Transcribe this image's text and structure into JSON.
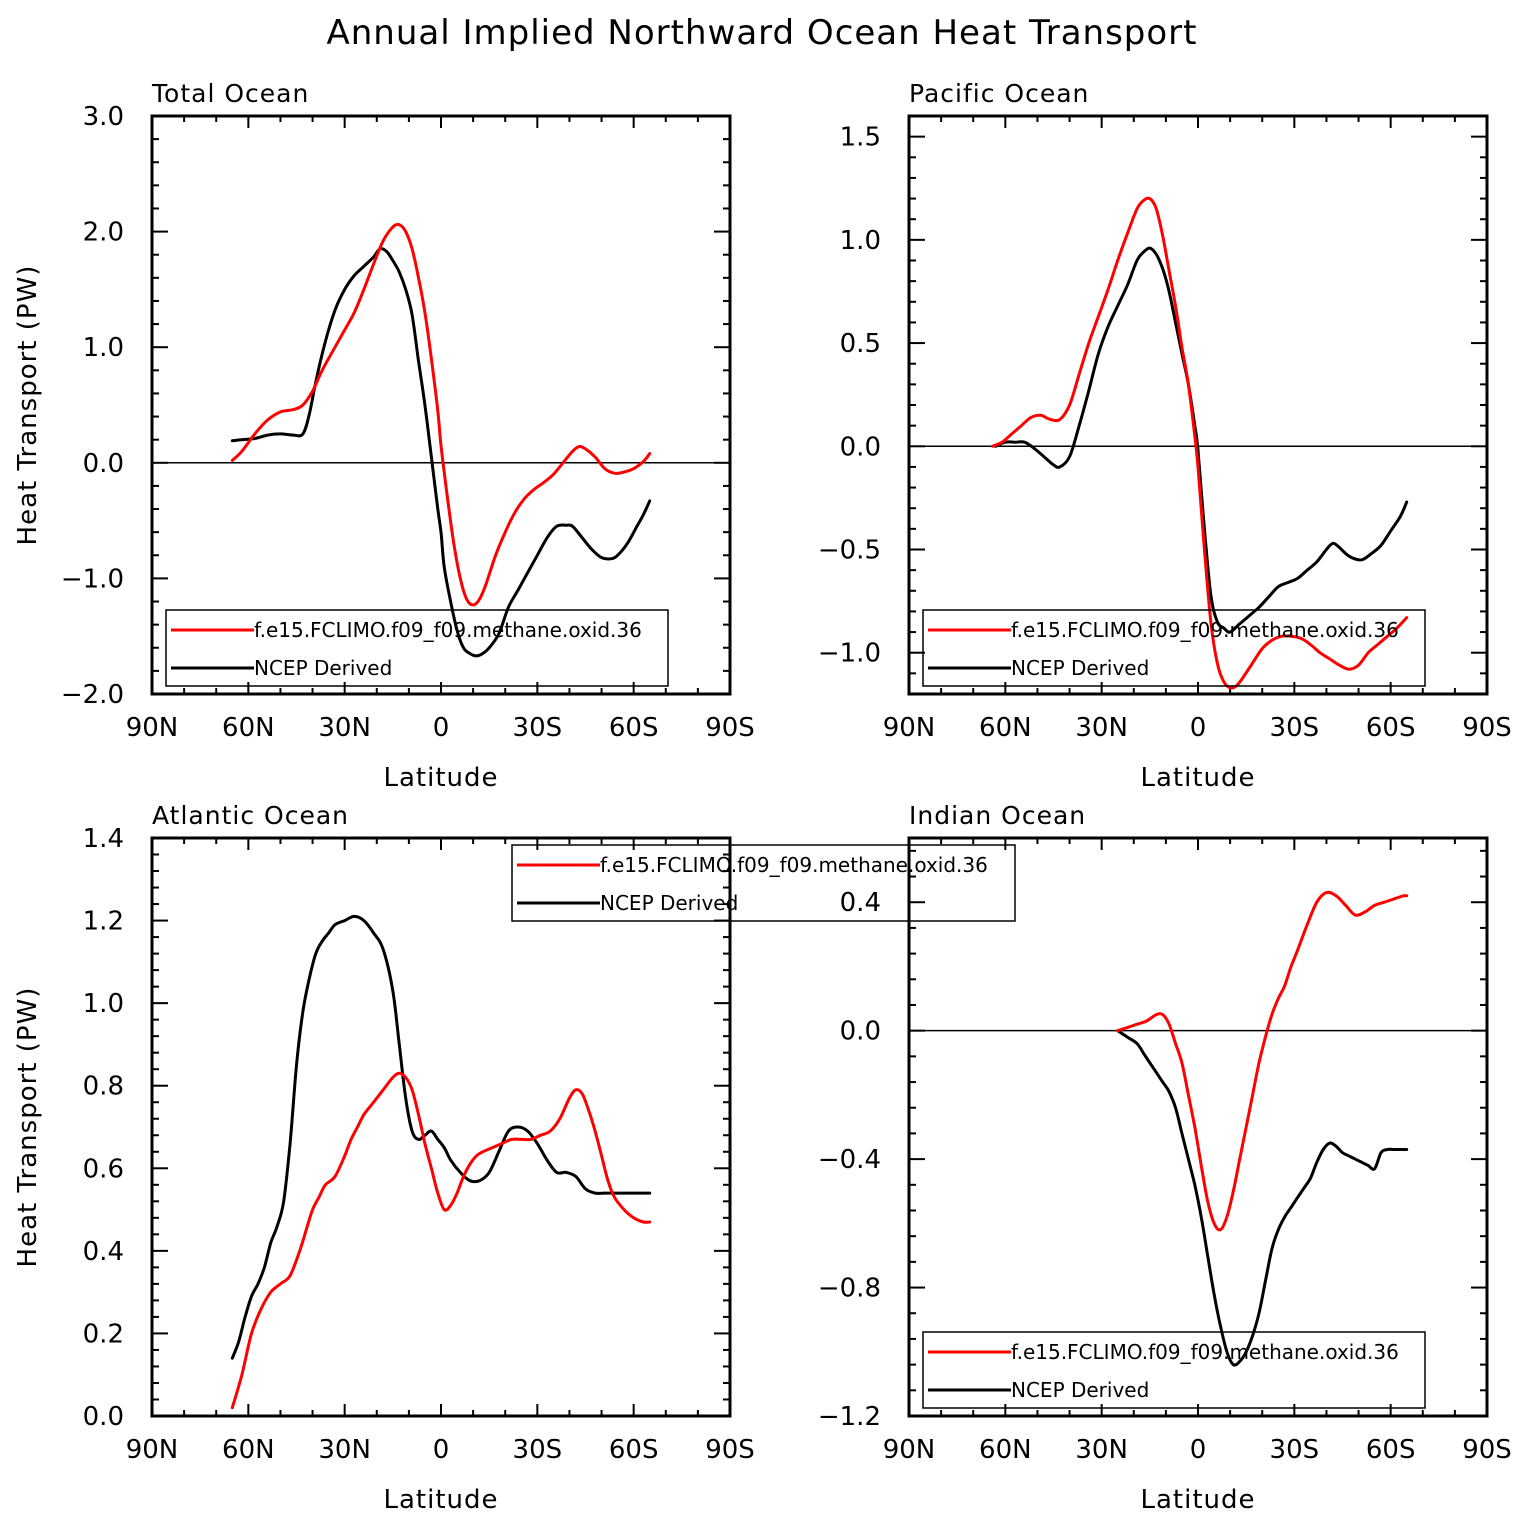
{
  "figure": {
    "title": "Annual Implied Northward Ocean Heat Transport"
  },
  "colors": {
    "model": "#ff0000",
    "ncep": "#000000"
  },
  "chart_data": [
    {
      "type": "line",
      "title": "Total Ocean",
      "xlabel": "Latitude",
      "ylabel": "Heat Transport (PW)",
      "xlim": [
        90,
        -90
      ],
      "ylim": [
        -2.0,
        3.0
      ],
      "yticks": [
        -2.0,
        -1.0,
        0.0,
        1.0,
        2.0,
        3.0
      ],
      "ytick_labels": [
        "−2.0",
        "−1.0",
        "0.0",
        "1.0",
        "2.0",
        "3.0"
      ],
      "xticks": [
        90,
        60,
        30,
        0,
        -30,
        -60,
        -90
      ],
      "xtick_labels": [
        "90N",
        "60N",
        "30N",
        "0",
        "30S",
        "60S",
        "90S"
      ],
      "legend": [
        "f.e15.FCLIMO.f09_f09.methane.oxid.36",
        "NCEP Derived"
      ],
      "legend_position": "bottom-left",
      "series": [
        {
          "name": "f.e15.FCLIMO.f09_f09.methane.oxid.36",
          "color": "model",
          "x": [
            65,
            62,
            58,
            54,
            50,
            46,
            43,
            40,
            37,
            33,
            30,
            27,
            24,
            21,
            18,
            15,
            13,
            11,
            9,
            7,
            5,
            3,
            1,
            0,
            -2,
            -4,
            -6,
            -8,
            -10,
            -12,
            -14,
            -17,
            -20,
            -23,
            -26,
            -29,
            -32,
            -35,
            -38,
            -41,
            -43,
            -45,
            -48,
            -51,
            -54,
            -57,
            -60,
            -63,
            -65
          ],
          "y": [
            0.02,
            0.1,
            0.25,
            0.37,
            0.44,
            0.46,
            0.5,
            0.62,
            0.8,
            1.0,
            1.15,
            1.3,
            1.5,
            1.72,
            1.92,
            2.04,
            2.06,
            2.0,
            1.85,
            1.6,
            1.3,
            0.9,
            0.45,
            0.15,
            -0.3,
            -0.7,
            -1.0,
            -1.18,
            -1.23,
            -1.18,
            -1.05,
            -0.8,
            -0.6,
            -0.43,
            -0.31,
            -0.23,
            -0.17,
            -0.1,
            0.0,
            0.1,
            0.14,
            0.12,
            0.05,
            -0.05,
            -0.09,
            -0.08,
            -0.05,
            0.01,
            0.08
          ]
        },
        {
          "name": "NCEP Derived",
          "color": "ncep",
          "x": [
            65,
            62,
            58,
            54,
            50,
            46,
            43,
            41,
            39,
            36,
            33,
            30,
            27,
            24,
            21,
            19,
            17,
            15,
            13,
            11,
            9,
            7,
            5,
            3,
            1,
            0,
            -1,
            -3,
            -5,
            -7,
            -9,
            -11,
            -13,
            -15,
            -18,
            -21,
            -24,
            -27,
            -30,
            -33,
            -36,
            -39,
            -41,
            -44,
            -47,
            -50,
            -53,
            -55,
            -58,
            -61,
            -63,
            -65
          ],
          "y": [
            0.19,
            0.2,
            0.21,
            0.24,
            0.25,
            0.24,
            0.25,
            0.42,
            0.7,
            1.05,
            1.32,
            1.5,
            1.62,
            1.7,
            1.78,
            1.85,
            1.83,
            1.75,
            1.65,
            1.5,
            1.28,
            0.88,
            0.5,
            0.05,
            -0.4,
            -0.6,
            -0.9,
            -1.2,
            -1.45,
            -1.6,
            -1.65,
            -1.67,
            -1.65,
            -1.6,
            -1.48,
            -1.25,
            -1.1,
            -0.95,
            -0.8,
            -0.65,
            -0.55,
            -0.54,
            -0.55,
            -0.65,
            -0.75,
            -0.82,
            -0.83,
            -0.8,
            -0.7,
            -0.55,
            -0.45,
            -0.33
          ]
        }
      ]
    },
    {
      "type": "line",
      "title": "Pacific Ocean",
      "xlabel": "Latitude",
      "ylabel": "",
      "xlim": [
        90,
        -90
      ],
      "ylim": [
        -1.2,
        1.6
      ],
      "yticks": [
        -1.0,
        -0.5,
        0.0,
        0.5,
        1.0,
        1.5
      ],
      "ytick_labels": [
        "−1.0",
        "−0.5",
        "0.0",
        "0.5",
        "1.0",
        "1.5"
      ],
      "xticks": [
        90,
        60,
        30,
        0,
        -30,
        -60,
        -90
      ],
      "xtick_labels": [
        "90N",
        "60N",
        "30N",
        "0",
        "30S",
        "60S",
        "90S"
      ],
      "legend": [
        "f.e15.FCLIMO.f09_f09.methane.oxid.36",
        "NCEP Derived"
      ],
      "legend_position": "bottom-left",
      "series": [
        {
          "name": "f.e15.FCLIMO.f09_f09.methane.oxid.36",
          "color": "model",
          "x": [
            64,
            61,
            58,
            55,
            52,
            49,
            46,
            43,
            40,
            37,
            34,
            31,
            28,
            25,
            22,
            19,
            17,
            15,
            13,
            11,
            9,
            7,
            5,
            3,
            1,
            0,
            -2,
            -4,
            -6,
            -8,
            -10,
            -12,
            -14,
            -17,
            -20,
            -23,
            -26,
            -29,
            -32,
            -35,
            -38,
            -41,
            -44,
            -47,
            -50,
            -53,
            -56,
            -59,
            -62,
            -65
          ],
          "y": [
            0.0,
            0.02,
            0.06,
            0.1,
            0.14,
            0.15,
            0.13,
            0.13,
            0.2,
            0.35,
            0.5,
            0.63,
            0.76,
            0.9,
            1.03,
            1.15,
            1.19,
            1.2,
            1.15,
            1.02,
            0.85,
            0.68,
            0.48,
            0.3,
            0.05,
            -0.1,
            -0.5,
            -0.85,
            -1.05,
            -1.14,
            -1.17,
            -1.16,
            -1.12,
            -1.05,
            -0.98,
            -0.94,
            -0.92,
            -0.92,
            -0.93,
            -0.96,
            -1.0,
            -1.03,
            -1.06,
            -1.08,
            -1.06,
            -1.0,
            -0.96,
            -0.92,
            -0.88,
            -0.83
          ]
        },
        {
          "name": "NCEP Derived",
          "color": "ncep",
          "x": [
            63,
            60,
            57,
            54,
            51,
            48,
            45,
            43,
            40,
            37,
            34,
            31,
            28,
            25,
            22,
            19,
            17,
            15,
            13,
            11,
            9,
            7,
            5,
            3,
            1,
            0,
            -2,
            -4,
            -6,
            -8,
            -10,
            -13,
            -16,
            -19,
            -22,
            -25,
            -28,
            -31,
            -34,
            -37,
            -40,
            -42,
            -44,
            -46,
            -48,
            -51,
            -54,
            -57,
            -60,
            -63,
            -65
          ],
          "y": [
            0.0,
            0.02,
            0.02,
            0.02,
            -0.01,
            -0.05,
            -0.09,
            -0.1,
            -0.05,
            0.1,
            0.27,
            0.45,
            0.58,
            0.68,
            0.78,
            0.9,
            0.94,
            0.96,
            0.93,
            0.86,
            0.75,
            0.6,
            0.45,
            0.3,
            0.1,
            -0.02,
            -0.4,
            -0.72,
            -0.85,
            -0.88,
            -0.9,
            -0.86,
            -0.82,
            -0.78,
            -0.73,
            -0.68,
            -0.66,
            -0.64,
            -0.6,
            -0.56,
            -0.5,
            -0.47,
            -0.49,
            -0.52,
            -0.54,
            -0.55,
            -0.52,
            -0.48,
            -0.41,
            -0.34,
            -0.27
          ]
        }
      ]
    },
    {
      "type": "line",
      "title": "Atlantic Ocean",
      "xlabel": "Latitude",
      "ylabel": "Heat Transport (PW)",
      "xlim": [
        90,
        -90
      ],
      "ylim": [
        0.0,
        1.4
      ],
      "yticks": [
        0.0,
        0.2,
        0.4,
        0.6,
        0.8,
        1.0,
        1.2,
        1.4
      ],
      "ytick_labels": [
        "0.0",
        "0.2",
        "0.4",
        "0.6",
        "0.8",
        "1.0",
        "1.2",
        "1.4"
      ],
      "xticks": [
        90,
        60,
        30,
        0,
        -30,
        -60,
        -90
      ],
      "xtick_labels": [
        "90N",
        "60N",
        "30N",
        "0",
        "30S",
        "60S",
        "90S"
      ],
      "legend": [
        "f.e15.FCLIMO.f09_f09.methane.oxid.36",
        "NCEP Derived"
      ],
      "legend_position": "top-center",
      "series": [
        {
          "name": "f.e15.FCLIMO.f09_f09.methane.oxid.36",
          "color": "model",
          "x": [
            65,
            62,
            59,
            56,
            53,
            50,
            47,
            44,
            42,
            40,
            38,
            36,
            33,
            30,
            28,
            26,
            24,
            21,
            18,
            15,
            13,
            11,
            9,
            7,
            5,
            3,
            1,
            -1,
            -3,
            -5,
            -7,
            -9,
            -11,
            -13,
            -16,
            -19,
            -22,
            -25,
            -28,
            -31,
            -34,
            -37,
            -40,
            -42,
            -44,
            -46,
            -48,
            -50,
            -52,
            -54,
            -57,
            -60,
            -63,
            -65
          ],
          "y": [
            0.02,
            0.1,
            0.2,
            0.26,
            0.3,
            0.32,
            0.34,
            0.4,
            0.45,
            0.5,
            0.53,
            0.56,
            0.58,
            0.63,
            0.67,
            0.7,
            0.73,
            0.76,
            0.79,
            0.82,
            0.83,
            0.82,
            0.79,
            0.73,
            0.66,
            0.6,
            0.54,
            0.5,
            0.51,
            0.54,
            0.58,
            0.61,
            0.63,
            0.64,
            0.65,
            0.66,
            0.67,
            0.67,
            0.67,
            0.68,
            0.69,
            0.72,
            0.77,
            0.79,
            0.78,
            0.74,
            0.69,
            0.63,
            0.57,
            0.53,
            0.5,
            0.48,
            0.47,
            0.47
          ]
        },
        {
          "name": "NCEP Derived",
          "color": "ncep",
          "x": [
            65,
            63,
            61,
            59,
            57,
            55,
            53,
            51,
            49,
            47,
            45,
            43,
            41,
            39,
            37,
            35,
            33,
            30,
            27,
            24,
            21,
            18,
            15,
            13,
            11,
            9,
            7,
            5,
            3,
            1,
            -1,
            -3,
            -6,
            -9,
            -12,
            -15,
            -18,
            -21,
            -24,
            -27,
            -30,
            -33,
            -36,
            -39,
            -42,
            -45,
            -48,
            -51,
            -54,
            -57,
            -60,
            -63,
            -65
          ],
          "y": [
            0.14,
            0.18,
            0.24,
            0.29,
            0.32,
            0.36,
            0.42,
            0.46,
            0.52,
            0.66,
            0.85,
            0.98,
            1.06,
            1.12,
            1.15,
            1.17,
            1.19,
            1.2,
            1.21,
            1.2,
            1.17,
            1.13,
            1.03,
            0.9,
            0.77,
            0.69,
            0.67,
            0.68,
            0.69,
            0.67,
            0.65,
            0.62,
            0.59,
            0.57,
            0.57,
            0.59,
            0.64,
            0.69,
            0.7,
            0.69,
            0.66,
            0.62,
            0.59,
            0.59,
            0.58,
            0.55,
            0.54,
            0.54,
            0.54,
            0.54,
            0.54,
            0.54,
            0.54
          ]
        }
      ]
    },
    {
      "type": "line",
      "title": "Indian Ocean",
      "xlabel": "Latitude",
      "ylabel": "",
      "xlim": [
        90,
        -90
      ],
      "ylim": [
        -1.2,
        0.6
      ],
      "yticks": [
        -1.2,
        -0.8,
        -0.4,
        0.0,
        0.4
      ],
      "ytick_labels": [
        "−1.2",
        "−0.8",
        "−0.4",
        "0.0",
        "0.4"
      ],
      "xticks": [
        90,
        60,
        30,
        0,
        -30,
        -60,
        -90
      ],
      "xtick_labels": [
        "90N",
        "60N",
        "30N",
        "0",
        "30S",
        "60S",
        "90S"
      ],
      "legend": [
        "f.e15.FCLIMO.f09_f09.methane.oxid.36",
        "NCEP Derived"
      ],
      "legend_position": "bottom-left",
      "series": [
        {
          "name": "f.e15.FCLIMO.f09_f09.methane.oxid.36",
          "color": "model",
          "x": [
            25,
            22,
            19,
            16,
            13,
            11,
            9,
            7,
            5,
            3,
            1,
            -1,
            -3,
            -5,
            -7,
            -9,
            -11,
            -13,
            -15,
            -17,
            -19,
            -21,
            -23,
            -25,
            -27,
            -29,
            -31,
            -34,
            -37,
            -40,
            -43,
            -46,
            -49,
            -52,
            -55,
            -58,
            -61,
            -64,
            -65
          ],
          "y": [
            0.0,
            0.01,
            0.02,
            0.03,
            0.05,
            0.05,
            0.02,
            -0.04,
            -0.1,
            -0.2,
            -0.3,
            -0.42,
            -0.53,
            -0.6,
            -0.62,
            -0.58,
            -0.5,
            -0.4,
            -0.3,
            -0.2,
            -0.1,
            -0.02,
            0.05,
            0.1,
            0.14,
            0.2,
            0.25,
            0.33,
            0.4,
            0.43,
            0.42,
            0.39,
            0.36,
            0.37,
            0.39,
            0.4,
            0.41,
            0.42,
            0.42
          ]
        },
        {
          "name": "NCEP Derived",
          "color": "ncep",
          "x": [
            25,
            22,
            19,
            17,
            15,
            13,
            11,
            9,
            7,
            5,
            3,
            1,
            -1,
            -3,
            -5,
            -7,
            -9,
            -11,
            -13,
            -15,
            -17,
            -19,
            -21,
            -23,
            -25,
            -27,
            -29,
            -31,
            -33,
            -35,
            -37,
            -39,
            -41,
            -43,
            -45,
            -47,
            -49,
            -51,
            -53,
            -55,
            -57,
            -59,
            -61,
            -63,
            -65
          ],
          "y": [
            0.0,
            -0.02,
            -0.04,
            -0.07,
            -0.1,
            -0.13,
            -0.16,
            -0.19,
            -0.24,
            -0.32,
            -0.4,
            -0.48,
            -0.58,
            -0.7,
            -0.82,
            -0.92,
            -1.0,
            -1.04,
            -1.03,
            -1.0,
            -0.95,
            -0.88,
            -0.78,
            -0.68,
            -0.62,
            -0.58,
            -0.55,
            -0.52,
            -0.49,
            -0.46,
            -0.41,
            -0.37,
            -0.35,
            -0.36,
            -0.38,
            -0.39,
            -0.4,
            -0.41,
            -0.42,
            -0.43,
            -0.38,
            -0.37,
            -0.37,
            -0.37,
            -0.37
          ]
        }
      ]
    }
  ]
}
